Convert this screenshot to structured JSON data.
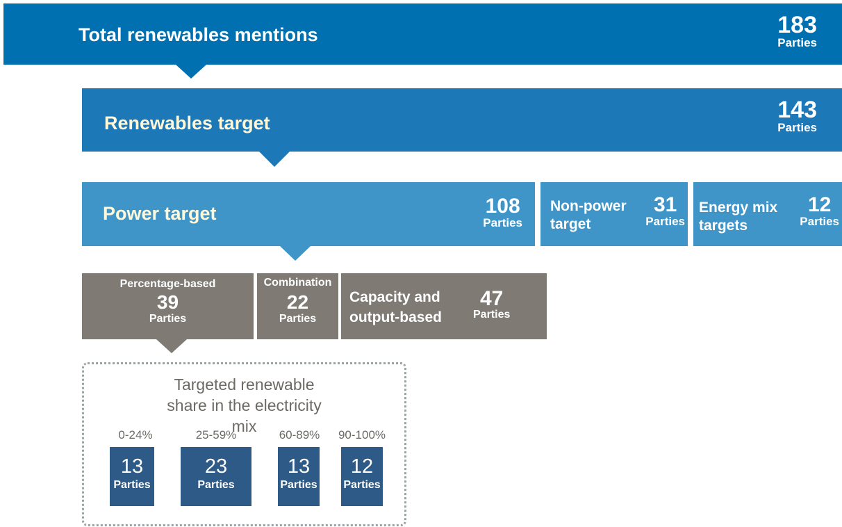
{
  "total": {
    "label": "Total renewables mentions",
    "count": 183,
    "unit": "Parties"
  },
  "renewables_target": {
    "label": "Renewables target",
    "count": 143,
    "unit": "Parties"
  },
  "power_target": {
    "label": "Power target",
    "count": 108,
    "unit": "Parties"
  },
  "non_power_target": {
    "label": "Non-power target",
    "count": 31,
    "unit": "Parties"
  },
  "energy_mix_targets": {
    "label": "Energy mix targets",
    "count": 12,
    "unit": "Parties"
  },
  "percentage_based": {
    "label": "Percentage-based",
    "count": 39,
    "unit": "Parties"
  },
  "combination": {
    "label": "Combination",
    "count": 22,
    "unit": "Parties"
  },
  "capacity_output": {
    "label": "Capacity and output-based",
    "count": 47,
    "unit": "Parties"
  },
  "share": {
    "title": "Targeted renewable share in the electricity mix",
    "bands": [
      {
        "range": "0-24%",
        "count": 13,
        "unit": "Parties"
      },
      {
        "range": "25-59%",
        "count": 23,
        "unit": "Parties"
      },
      {
        "range": "60-89%",
        "count": 13,
        "unit": "Parties"
      },
      {
        "range": "90-100%",
        "count": 12,
        "unit": "Parties"
      }
    ]
  }
}
